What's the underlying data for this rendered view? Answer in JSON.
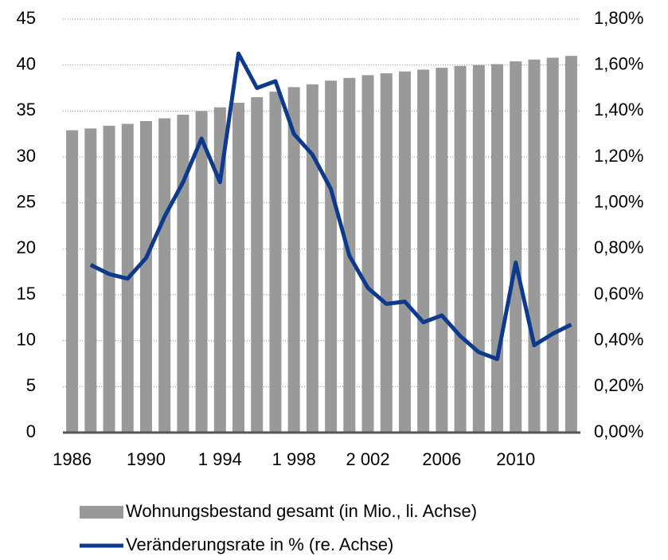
{
  "chart_data": {
    "type": "bar-line",
    "categories": [
      "1986",
      null,
      null,
      null,
      "1990",
      null,
      null,
      null,
      "1 994",
      null,
      null,
      null,
      "1 998",
      null,
      null,
      null,
      "2 002",
      null,
      null,
      null,
      "2006",
      null,
      null,
      null,
      "2010",
      null,
      null,
      null
    ],
    "series": [
      {
        "name": "Wohnungsbestand gesamt (in Mio., li. Achse)",
        "color": "#999999",
        "type": "bar",
        "values": [
          32.9,
          33.1,
          33.4,
          33.6,
          33.9,
          34.2,
          34.6,
          35.0,
          35.4,
          35.9,
          36.5,
          37.1,
          37.6,
          37.9,
          38.3,
          38.6,
          38.9,
          39.1,
          39.3,
          39.5,
          39.7,
          39.9,
          40.0,
          40.1,
          40.4,
          40.6,
          40.8,
          41.0
        ]
      },
      {
        "name": "Veränderungsrate in % (re. Achse)",
        "color": "#0d3a8c",
        "type": "line",
        "axis": "y2",
        "values": [
          null,
          0.73,
          0.69,
          0.67,
          0.76,
          0.94,
          1.09,
          1.28,
          1.09,
          1.65,
          1.5,
          1.53,
          1.3,
          1.21,
          1.06,
          0.77,
          0.63,
          0.56,
          0.57,
          0.48,
          0.51,
          0.42,
          0.35,
          0.32,
          0.74,
          0.38,
          0.43,
          0.47
        ]
      }
    ],
    "ylim": [
      0,
      45
    ],
    "yticks": [
      0,
      5,
      10,
      15,
      20,
      25,
      30,
      35,
      40,
      45
    ],
    "y2lim": [
      0,
      1.8
    ],
    "y2ticks": [
      {
        "value": 0,
        "label": "0,00%"
      },
      {
        "value": 0.2,
        "label": "0,20%"
      },
      {
        "value": 0.4,
        "label": "0,40%"
      },
      {
        "value": 0.6,
        "label": "0,60%"
      },
      {
        "value": 0.8,
        "label": "0,80%"
      },
      {
        "value": 1.0,
        "label": "1,00%"
      },
      {
        "value": 1.2,
        "label": "1,20%"
      },
      {
        "value": 1.4,
        "label": "1,40%"
      },
      {
        "value": 1.6,
        "label": "1,60%"
      },
      {
        "value": 1.8,
        "label": "1,80%"
      }
    ],
    "grid": true,
    "legend": "bottom"
  }
}
